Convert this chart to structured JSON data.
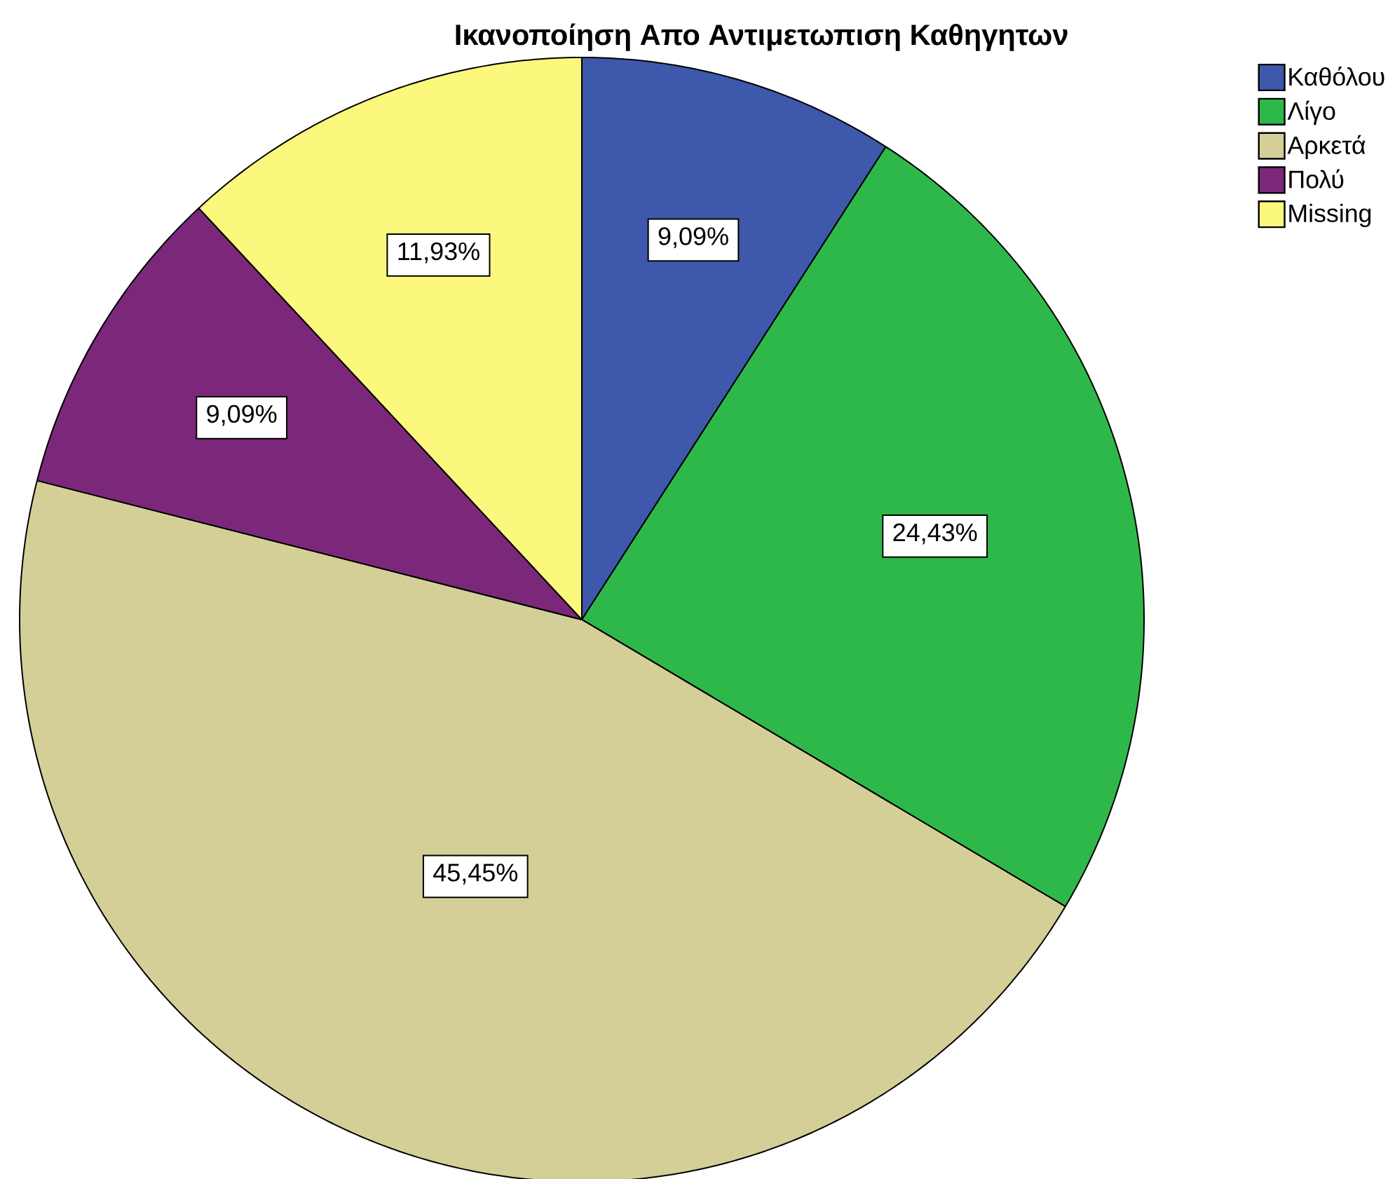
{
  "chart_data": {
    "type": "pie",
    "title": "Ικανοποίηση Απο Αντιμετωπιση Καθηγητων",
    "categories": [
      "Καθόλου",
      "Λίγο",
      "Αρκετά",
      "Πολύ",
      "Missing"
    ],
    "values": [
      9.09,
      24.43,
      45.45,
      9.09,
      11.93
    ],
    "colors": [
      "#3e58ac",
      "#2fb84a",
      "#d4cf97",
      "#7b287b",
      "#fbf87d"
    ],
    "value_labels": [
      "9,09%",
      "24,43%",
      "45,45%",
      "9,09%",
      "11,93%"
    ],
    "legend": "top right"
  }
}
